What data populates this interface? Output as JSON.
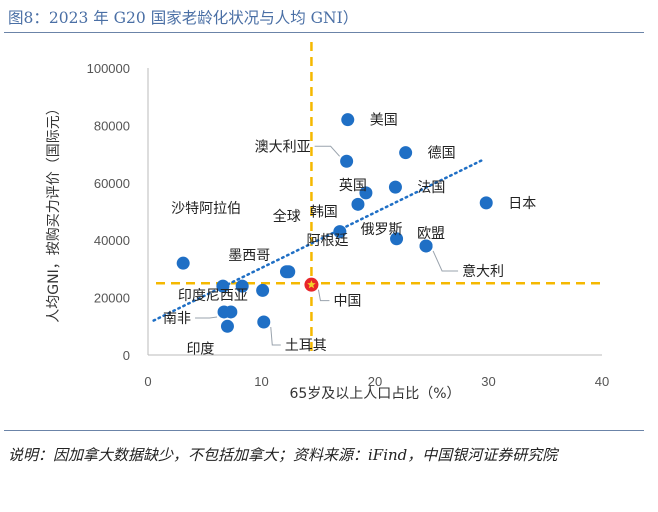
{
  "title": "图8：2023 年 G20 国家老龄化状况与人均 GNI）",
  "note": "说明：因加拿大数据缺少，不包括加拿大；资料来源：iFind，中国银河证券研究院",
  "chart_data": {
    "type": "scatter",
    "xlabel": "65岁及以上人口占比（%）",
    "ylabel": "人均GNI，按购买力评价（国际元）",
    "xlim": [
      0,
      40
    ],
    "ylim": [
      0,
      100000
    ],
    "xticks": [
      "0",
      "10",
      "20",
      "30",
      "40"
    ],
    "yticks": [
      "0",
      "20000",
      "40000",
      "60000",
      "80000",
      "100000"
    ],
    "reference_lines": {
      "x": 14.4,
      "y": 25000
    },
    "trendline": {
      "x0": 0.5,
      "y0": 12000,
      "x1": 29.5,
      "y1": 68000
    },
    "colors": {
      "point": "#1f6fc5",
      "highlight": "#e8262a",
      "star": "#f2d22b",
      "ref": "#f5b800",
      "trend": "#1f6fc5"
    },
    "points": [
      {
        "name": "美国",
        "x": 17.6,
        "y": 82000
      },
      {
        "name": "德国",
        "x": 22.7,
        "y": 70500
      },
      {
        "name": "澳大利亚",
        "x": 17.5,
        "y": 67500
      },
      {
        "name": "英国",
        "x": 19.2,
        "y": 56500
      },
      {
        "name": "",
        "x": 18.5,
        "y": 52500
      },
      {
        "name": "法国",
        "x": 21.8,
        "y": 58500
      },
      {
        "name": "日本",
        "x": 29.8,
        "y": 53000
      },
      {
        "name": "韩国",
        "x": 16.9,
        "y": 43000
      },
      {
        "name": "俄罗斯",
        "x": 21.9,
        "y": 40500
      },
      {
        "name": "欧盟",
        "x": 24.5,
        "y": 38000
      },
      {
        "name": "意大利",
        "x": 24.5,
        "y": 38000
      },
      {
        "name": "沙特阿拉伯",
        "x": 3.1,
        "y": 32000
      },
      {
        "name": "全球",
        "x": 12.4,
        "y": 29000
      },
      {
        "name": "墨西哥",
        "x": 8.3,
        "y": 24000
      },
      {
        "name": "阿根廷",
        "x": 12.2,
        "y": 29000
      },
      {
        "name": "印度尼西亚",
        "x": 6.6,
        "y": 24000
      },
      {
        "name": "中国",
        "x": 14.4,
        "y": 24500,
        "highlight": true
      },
      {
        "name": "",
        "x": 10.1,
        "y": 22500
      },
      {
        "name": "南非",
        "x": 6.7,
        "y": 15000
      },
      {
        "name": "",
        "x": 7.3,
        "y": 15000
      },
      {
        "name": "印度",
        "x": 7.0,
        "y": 10000
      },
      {
        "name": "土耳其",
        "x": 10.2,
        "y": 11500
      }
    ]
  }
}
